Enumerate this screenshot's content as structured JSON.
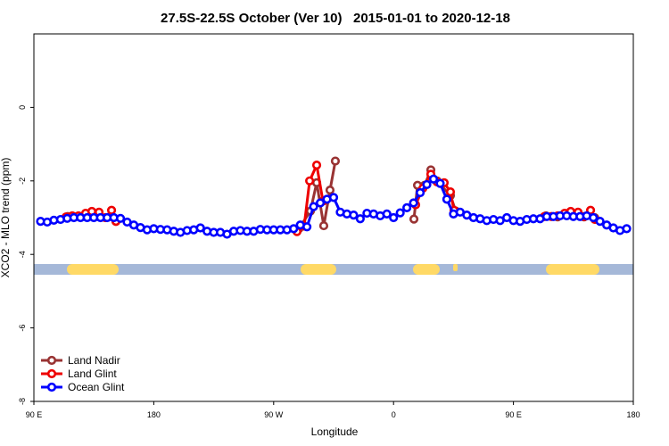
{
  "chart_data": {
    "type": "line",
    "title": "27.5S-22.5S October (Ver 10)   2015-01-01 to 2020-12-18",
    "x_label": "Longitude",
    "y_label": "XCO2 - MLO trend (ppm)",
    "xlim": [
      90,
      540
    ],
    "xticks": [
      {
        "value": 90,
        "label": "90 E"
      },
      {
        "value": 180,
        "label": "180"
      },
      {
        "value": 270,
        "label": "90 W"
      },
      {
        "value": 360,
        "label": "0"
      },
      {
        "value": 450,
        "label": "90 E"
      },
      {
        "value": 540,
        "label": "180"
      }
    ],
    "ylim": [
      -8,
      2
    ],
    "yticks": [
      -8,
      -6,
      -4,
      -2,
      0
    ],
    "legend": "bottom-left",
    "series": [
      {
        "name": "Land Nadir",
        "color": "#993333",
        "x": [
          115.4,
          120.8,
          148.3,
          151.6,
          null,
          288.9,
          297.6,
          302.3,
          307.6,
          312.3,
          316.3,
          null,
          375.3,
          378,
          383.3,
          388,
          392.7,
          402.7,
          406.7,
          null,
          474.4,
          483.2,
          503,
          511
        ],
        "values": [
          -2.97,
          -2.98,
          -2.95,
          -3.1,
          null,
          -3.3,
          -2.82,
          -2.05,
          -3.22,
          -2.25,
          -1.46,
          null,
          -3.04,
          -2.12,
          -2.12,
          -1.7,
          -2.0,
          -2.4,
          -2.82,
          null,
          -2.95,
          -2.98,
          -2.98,
          -3.0
        ]
      },
      {
        "name": "Land Glint",
        "color": "#ee0000",
        "x": [
          114.1,
          118.8,
          123.5,
          128.8,
          133.5,
          138.9,
          143.6,
          148.3,
          151.6,
          null,
          287.5,
          292.9,
          297,
          302.3,
          307,
          null,
          376.6,
          382,
          388,
          392.7,
          398,
          402.7,
          405.4,
          null,
          473.2,
          478.5,
          483.2,
          488.4,
          493,
          498.5,
          503.2,
          507.9,
          511.2
        ],
        "values": [
          -2.98,
          -2.95,
          -2.95,
          -2.88,
          -2.83,
          -2.85,
          -3.0,
          -2.8,
          -3.1,
          null,
          -3.38,
          -3.23,
          -2.0,
          -1.57,
          -2.55,
          null,
          -2.65,
          -2.2,
          -1.82,
          -2.03,
          -2.05,
          -2.3,
          -2.8,
          null,
          -2.97,
          -2.97,
          -2.95,
          -2.88,
          -2.83,
          -2.85,
          -2.97,
          -2.8,
          -3.05
        ]
      },
      {
        "name": "Ocean Glint",
        "color": "#0000ff",
        "x": [
          95,
          100,
          105,
          110,
          115,
          120,
          125,
          130,
          135,
          140,
          145,
          150,
          155,
          160,
          165,
          170,
          175,
          180,
          185,
          190,
          195,
          200,
          205,
          210,
          215,
          220,
          225,
          230,
          235,
          240,
          245,
          250,
          255,
          260,
          265,
          270,
          275,
          280,
          285,
          290,
          295,
          300,
          305,
          310,
          315,
          320,
          325,
          330,
          335,
          340,
          345,
          350,
          355,
          360,
          365,
          370,
          375,
          380,
          385,
          390,
          395,
          400,
          405,
          410,
          415,
          420,
          425,
          430,
          435,
          440,
          445,
          450,
          455,
          460,
          465,
          470,
          475,
          480,
          485,
          490,
          495,
          500,
          505,
          510,
          515,
          520,
          525,
          530,
          535
        ],
        "values": [
          -3.1,
          -3.12,
          -3.07,
          -3.05,
          -3.02,
          -3.0,
          -3.0,
          -3.0,
          -3.0,
          -3.0,
          -3.0,
          -3.0,
          -3.02,
          -3.12,
          -3.2,
          -3.27,
          -3.33,
          -3.3,
          -3.32,
          -3.33,
          -3.37,
          -3.4,
          -3.35,
          -3.33,
          -3.28,
          -3.37,
          -3.4,
          -3.4,
          -3.45,
          -3.37,
          -3.35,
          -3.37,
          -3.37,
          -3.32,
          -3.33,
          -3.33,
          -3.33,
          -3.33,
          -3.3,
          -3.2,
          -3.25,
          -2.7,
          -2.6,
          -2.5,
          -2.45,
          -2.85,
          -2.9,
          -2.93,
          -3.03,
          -2.88,
          -2.9,
          -2.95,
          -2.9,
          -3.0,
          -2.87,
          -2.73,
          -2.6,
          -2.32,
          -2.1,
          -1.95,
          -2.07,
          -2.5,
          -2.9,
          -2.85,
          -2.93,
          -3.0,
          -3.03,
          -3.08,
          -3.05,
          -3.08,
          -3.0,
          -3.08,
          -3.1,
          -3.05,
          -3.03,
          -3.03,
          -2.97,
          -2.97,
          -2.95,
          -2.95,
          -2.97,
          -2.97,
          -2.95,
          -3.0,
          -3.1,
          -3.2,
          -3.28,
          -3.35,
          -3.3
        ]
      }
    ]
  }
}
